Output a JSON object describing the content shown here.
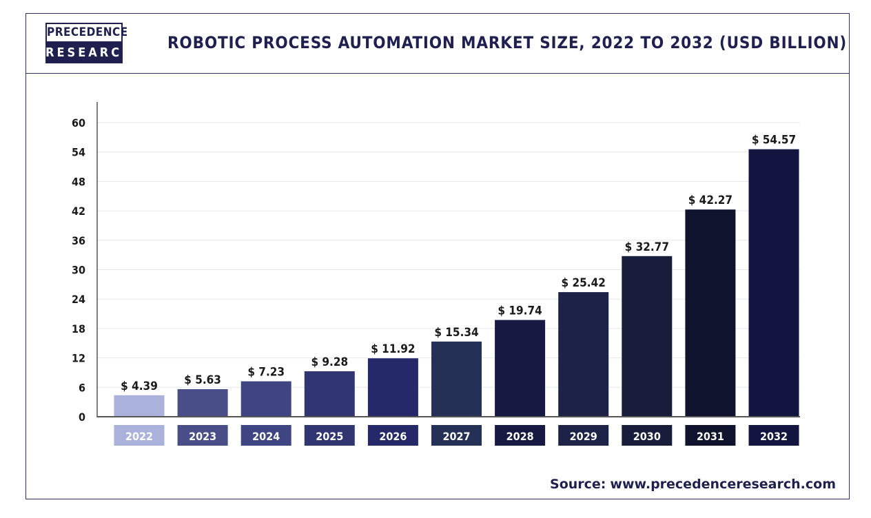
{
  "logo": {
    "top": "PRECEDENCE",
    "bottom": "RESEARCH"
  },
  "header": {
    "title": "ROBOTIC PROCESS AUTOMATION MARKET SIZE, 2022 TO 2032 (USD BILLION)"
  },
  "source": {
    "label": "Source:",
    "url": "www.precedenceresearch.com"
  },
  "colors": {
    "brand": "#1f2050",
    "bars": [
      "#aab2dc",
      "#4a4e88",
      "#3f4483",
      "#313571",
      "#25296a",
      "#243056",
      "#161a42",
      "#1d2347",
      "#181d3c",
      "#10132d",
      "#121540"
    ]
  },
  "chart_data": {
    "type": "bar",
    "title": "ROBOTIC PROCESS AUTOMATION MARKET SIZE, 2022 TO 2032 (USD BILLION)",
    "categories": [
      "2022",
      "2023",
      "2024",
      "2025",
      "2026",
      "2027",
      "2028",
      "2029",
      "2030",
      "2031",
      "2032"
    ],
    "values": [
      4.39,
      5.63,
      7.23,
      9.28,
      11.92,
      15.34,
      19.74,
      25.42,
      32.77,
      42.27,
      54.57
    ],
    "value_labels": [
      "$ 4.39",
      "$ 5.63",
      "$ 7.23",
      "$ 9.28",
      "$ 11.92",
      "$ 15.34",
      "$ 19.74",
      "$ 25.42",
      "$ 32.77",
      "$ 42.27",
      "$ 54.57"
    ],
    "yticks": [
      "0",
      "6",
      "12",
      "18",
      "24",
      "30",
      "36",
      "42",
      "48",
      "54",
      "60"
    ],
    "ylim": [
      0,
      60
    ],
    "xlabel": "",
    "ylabel": "",
    "grid": true,
    "legend": "none"
  }
}
